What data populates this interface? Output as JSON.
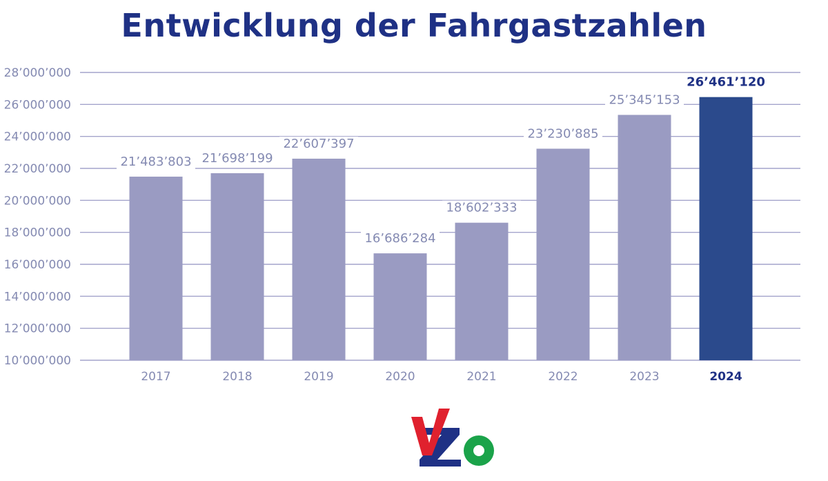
{
  "chart_data": {
    "type": "bar",
    "title": "Entwicklung der Fahrgastzahlen",
    "xlabel": "",
    "ylabel": "",
    "categories": [
      "2017",
      "2018",
      "2019",
      "2020",
      "2021",
      "2022",
      "2023",
      "2024"
    ],
    "values": [
      21483803,
      21698199,
      22607397,
      16686284,
      18602333,
      23230885,
      25345153,
      26461120
    ],
    "value_labels": [
      "21’483’803",
      "21’698’199",
      "22’607’397",
      "16’686’284",
      "18’602’333",
      "23’230’885",
      "25’345’153",
      "26’461’120"
    ],
    "ylim": [
      10000000,
      28000000
    ],
    "yticks": [
      10000000,
      12000000,
      14000000,
      16000000,
      18000000,
      20000000,
      22000000,
      24000000,
      26000000,
      28000000
    ],
    "ytick_labels": [
      "10’000’000",
      "12’000’000",
      "14’000’000",
      "16’000’000",
      "18’000’000",
      "20’000’000",
      "22’000’000",
      "24’000’000",
      "26’000’000",
      "28’000’000"
    ],
    "highlight_category": "2024",
    "grid": true,
    "legend": "none",
    "colors": {
      "bar": "#9a9bc2",
      "bar_highlight": "#2b4a8c",
      "title": "#1f3185",
      "grid": "#a4a4cb",
      "tick_text": "#848ab2"
    }
  },
  "logo": {
    "text": "VZO",
    "colors": {
      "v": "#e0212e",
      "z": "#1f3185",
      "o": "#1ba34a"
    }
  }
}
